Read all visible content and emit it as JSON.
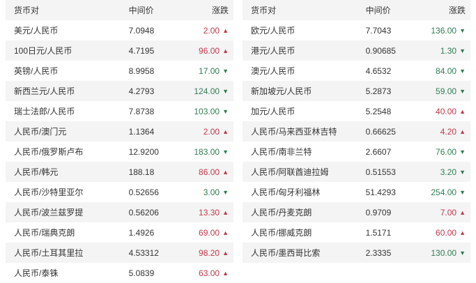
{
  "colors": {
    "up_red": "#c0394b",
    "down_green": "#2e7d52",
    "stripe": "#f4f4f4",
    "text": "#333333"
  },
  "icons": {
    "up_arrow": "▲",
    "down_arrow": "▼"
  },
  "tables": [
    {
      "headers": {
        "pair": "货币对",
        "mid": "中间价",
        "change": "涨跌"
      },
      "rows": [
        {
          "pair": "美元/人民币",
          "mid": "7.0948",
          "change": "2.00",
          "dir": "up"
        },
        {
          "pair": "100日元/人民币",
          "mid": "4.7195",
          "change": "96.00",
          "dir": "up"
        },
        {
          "pair": "英镑/人民币",
          "mid": "8.9958",
          "change": "17.00",
          "dir": "down"
        },
        {
          "pair": "新西兰元/人民币",
          "mid": "4.2793",
          "change": "124.00",
          "dir": "down"
        },
        {
          "pair": "瑞士法郎/人民币",
          "mid": "7.8738",
          "change": "103.00",
          "dir": "down"
        },
        {
          "pair": "人民币/澳门元",
          "mid": "1.1364",
          "change": "2.00",
          "dir": "up"
        },
        {
          "pair": "人民币/俄罗斯卢布",
          "mid": "12.9200",
          "change": "183.00",
          "dir": "down"
        },
        {
          "pair": "人民币/韩元",
          "mid": "188.18",
          "change": "86.00",
          "dir": "up"
        },
        {
          "pair": "人民币/沙特里亚尔",
          "mid": "0.52656",
          "change": "3.00",
          "dir": "down"
        },
        {
          "pair": "人民币/波兰兹罗提",
          "mid": "0.56206",
          "change": "13.30",
          "dir": "up"
        },
        {
          "pair": "人民币/瑞典克朗",
          "mid": "1.4926",
          "change": "69.00",
          "dir": "up"
        },
        {
          "pair": "人民币/土耳其里拉",
          "mid": "4.53312",
          "change": "98.20",
          "dir": "up"
        },
        {
          "pair": "人民币/泰铢",
          "mid": "5.0839",
          "change": "63.00",
          "dir": "up"
        }
      ]
    },
    {
      "headers": {
        "pair": "货币对",
        "mid": "中间价",
        "change": "涨跌"
      },
      "rows": [
        {
          "pair": "欧元/人民币",
          "mid": "7.7043",
          "change": "136.00",
          "dir": "down"
        },
        {
          "pair": "港元/人民币",
          "mid": "0.90685",
          "change": "1.30",
          "dir": "down"
        },
        {
          "pair": "澳元/人民币",
          "mid": "4.6532",
          "change": "84.00",
          "dir": "down"
        },
        {
          "pair": "新加坡元/人民币",
          "mid": "5.2873",
          "change": "59.00",
          "dir": "down"
        },
        {
          "pair": "加元/人民币",
          "mid": "5.2548",
          "change": "40.00",
          "dir": "up"
        },
        {
          "pair": "人民币/马来西亚林吉特",
          "mid": "0.66625",
          "change": "4.20",
          "dir": "up"
        },
        {
          "pair": "人民币/南非兰特",
          "mid": "2.6607",
          "change": "76.00",
          "dir": "down"
        },
        {
          "pair": "人民币/阿联酋迪拉姆",
          "mid": "0.51553",
          "change": "3.20",
          "dir": "down"
        },
        {
          "pair": "人民币/匈牙利福林",
          "mid": "51.4293",
          "change": "254.00",
          "dir": "down"
        },
        {
          "pair": "人民币/丹麦克朗",
          "mid": "0.9709",
          "change": "7.00",
          "dir": "up"
        },
        {
          "pair": "人民币/挪威克朗",
          "mid": "1.5171",
          "change": "60.00",
          "dir": "up"
        },
        {
          "pair": "人民币/墨西哥比索",
          "mid": "2.3335",
          "change": "130.00",
          "dir": "down"
        }
      ]
    }
  ]
}
